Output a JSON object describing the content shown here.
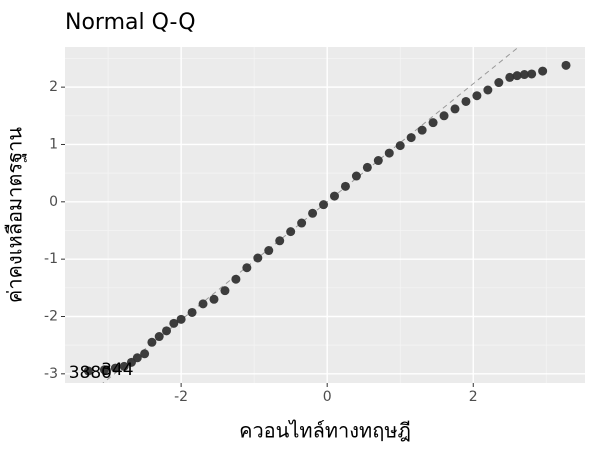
{
  "chart_data": {
    "type": "scatter",
    "title": "Normal Q-Q",
    "xlabel": "ควอนไทล์ทางทฤษฎี",
    "ylabel": "ค่าคงเหลือมาตรฐาน",
    "x": [
      -3.27,
      -3.05,
      -2.9,
      -2.78,
      -2.68,
      -2.6,
      -2.5,
      -2.4,
      -2.3,
      -2.2,
      -2.1,
      -2.0,
      -1.85,
      -1.7,
      -1.55,
      -1.4,
      -1.25,
      -1.1,
      -0.95,
      -0.8,
      -0.65,
      -0.5,
      -0.35,
      -0.2,
      -0.05,
      0.1,
      0.25,
      0.4,
      0.55,
      0.7,
      0.85,
      1.0,
      1.15,
      1.3,
      1.45,
      1.6,
      1.75,
      1.9,
      2.05,
      2.2,
      2.35,
      2.5,
      2.6,
      2.7,
      2.8,
      2.95,
      3.27
    ],
    "values": [
      -2.95,
      -2.93,
      -2.9,
      -2.87,
      -2.8,
      -2.72,
      -2.65,
      -2.45,
      -2.35,
      -2.25,
      -2.12,
      -2.05,
      -1.93,
      -1.78,
      -1.7,
      -1.55,
      -1.35,
      -1.15,
      -0.98,
      -0.85,
      -0.68,
      -0.52,
      -0.37,
      -0.2,
      -0.05,
      0.1,
      0.27,
      0.45,
      0.6,
      0.72,
      0.85,
      0.98,
      1.12,
      1.25,
      1.38,
      1.5,
      1.62,
      1.75,
      1.85,
      1.95,
      2.08,
      2.17,
      2.2,
      2.22,
      2.23,
      2.28,
      2.38
    ],
    "color": "#333333",
    "xlim": [
      -3.59,
      3.53
    ],
    "ylim": [
      -3.16,
      2.7
    ],
    "xticks": [
      -2,
      0,
      2
    ],
    "yticks": [
      -3,
      -2,
      -1,
      0,
      1,
      2
    ],
    "x_minor_grid": [
      -3,
      -1,
      1,
      3
    ],
    "y_minor_grid": [
      -2.5,
      -1.5,
      -0.5,
      0.5,
      1.5,
      2.5
    ],
    "grid": true,
    "reference_line": {
      "slope": 1.03,
      "intercept": 0
    },
    "annotations": [
      {
        "text": "3880",
        "point": 0
      },
      {
        "text": "344",
        "point": 2
      }
    ]
  }
}
